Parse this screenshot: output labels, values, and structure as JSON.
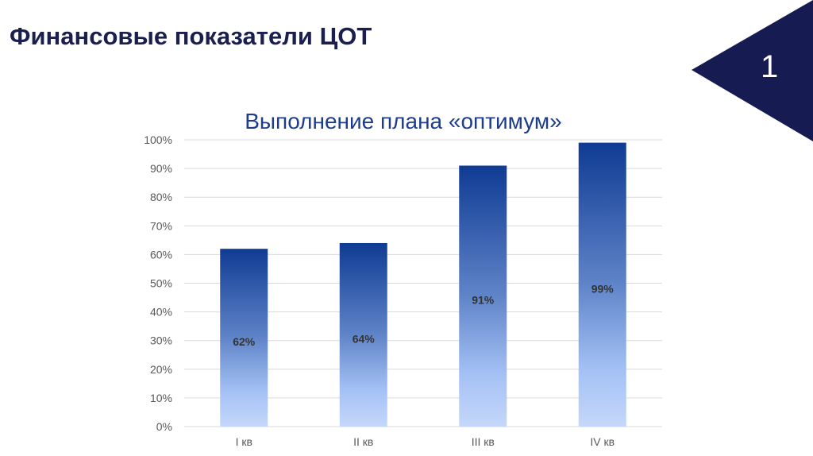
{
  "slide": {
    "title": "Финансовые показатели ЦОТ",
    "number": "1",
    "accent_color": "#161b52"
  },
  "chart_data": {
    "type": "bar",
    "title": "Выполнение плана «оптимум»",
    "categories": [
      "I кв",
      "II кв",
      "III кв",
      "IV кв"
    ],
    "values": [
      62,
      64,
      91,
      99
    ],
    "data_labels": [
      "62%",
      "64%",
      "91%",
      "99%"
    ],
    "ylim": [
      0,
      100
    ],
    "yticks": [
      "0%",
      "10%",
      "20%",
      "30%",
      "40%",
      "50%",
      "60%",
      "70%",
      "80%",
      "90%",
      "100%"
    ],
    "grid": true,
    "bar_gradient": [
      "#0f3b93",
      "#c5d7fa"
    ]
  }
}
